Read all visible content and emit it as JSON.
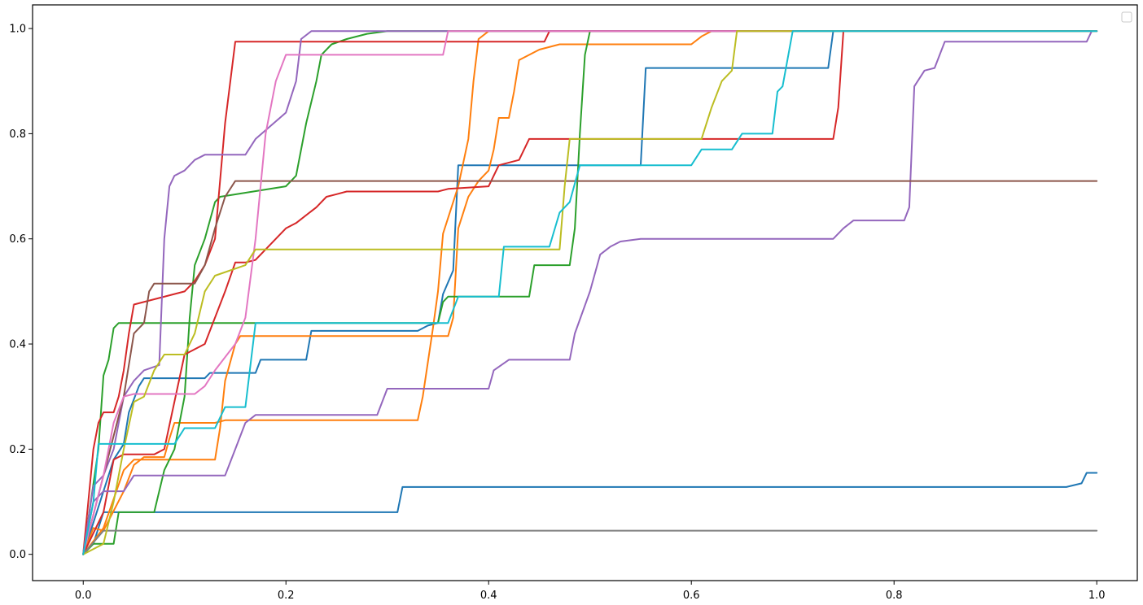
{
  "chart_data": {
    "type": "line",
    "title": "",
    "xlabel": "",
    "ylabel": "",
    "xlim": [
      -0.05,
      1.04
    ],
    "ylim": [
      -0.05,
      1.045
    ],
    "xticks": [
      0.0,
      0.2,
      0.4,
      0.6,
      0.8,
      1.0
    ],
    "xtick_labels": [
      "0.0",
      "0.2",
      "0.4",
      "0.6",
      "0.8",
      "1.0"
    ],
    "yticks": [
      0.0,
      0.2,
      0.4,
      0.6,
      0.8,
      1.0
    ],
    "ytick_labels": [
      "0.0",
      "0.2",
      "0.4",
      "0.6",
      "0.8",
      "1.0"
    ],
    "grid": false,
    "legend": {
      "placement": "top-right",
      "entries": []
    },
    "series": [
      {
        "color": "#1f77b4",
        "points": [
          [
            0,
            0
          ],
          [
            0.01,
            0.02
          ],
          [
            0.02,
            0.08
          ],
          [
            0.31,
            0.08
          ],
          [
            0.315,
            0.128
          ],
          [
            0.97,
            0.128
          ],
          [
            0.985,
            0.135
          ],
          [
            0.99,
            0.155
          ],
          [
            1.0,
            0.155
          ]
        ]
      },
      {
        "color": "#1f77b4",
        "points": [
          [
            0,
            0
          ],
          [
            0.02,
            0.12
          ],
          [
            0.03,
            0.18
          ],
          [
            0.04,
            0.21
          ],
          [
            0.045,
            0.27
          ],
          [
            0.055,
            0.32
          ],
          [
            0.06,
            0.335
          ],
          [
            0.12,
            0.335
          ],
          [
            0.125,
            0.345
          ],
          [
            0.17,
            0.345
          ],
          [
            0.175,
            0.37
          ],
          [
            0.22,
            0.37
          ],
          [
            0.225,
            0.425
          ],
          [
            0.33,
            0.425
          ],
          [
            0.34,
            0.435
          ],
          [
            0.35,
            0.44
          ],
          [
            0.355,
            0.495
          ],
          [
            0.365,
            0.54
          ],
          [
            0.37,
            0.74
          ],
          [
            0.55,
            0.74
          ],
          [
            0.555,
            0.925
          ],
          [
            0.735,
            0.925
          ],
          [
            0.74,
            0.995
          ],
          [
            1.0,
            0.995
          ]
        ]
      },
      {
        "color": "#ff7f0e",
        "points": [
          [
            0,
            0
          ],
          [
            0.01,
            0.05
          ],
          [
            0.02,
            0.045
          ],
          [
            0.04,
            0.12
          ],
          [
            0.05,
            0.17
          ],
          [
            0.06,
            0.185
          ],
          [
            0.08,
            0.185
          ],
          [
            0.085,
            0.22
          ],
          [
            0.09,
            0.25
          ],
          [
            0.13,
            0.25
          ],
          [
            0.14,
            0.255
          ],
          [
            0.33,
            0.255
          ],
          [
            0.335,
            0.3
          ],
          [
            0.345,
            0.43
          ],
          [
            0.35,
            0.5
          ],
          [
            0.355,
            0.61
          ],
          [
            0.37,
            0.7
          ],
          [
            0.38,
            0.79
          ],
          [
            0.385,
            0.9
          ],
          [
            0.39,
            0.98
          ],
          [
            0.4,
            0.995
          ],
          [
            1.0,
            0.995
          ]
        ]
      },
      {
        "color": "#ff7f0e",
        "points": [
          [
            0,
            0
          ],
          [
            0.02,
            0.05
          ],
          [
            0.04,
            0.16
          ],
          [
            0.05,
            0.18
          ],
          [
            0.13,
            0.18
          ],
          [
            0.135,
            0.24
          ],
          [
            0.14,
            0.33
          ],
          [
            0.15,
            0.4
          ],
          [
            0.155,
            0.415
          ],
          [
            0.36,
            0.415
          ],
          [
            0.365,
            0.45
          ],
          [
            0.37,
            0.62
          ],
          [
            0.38,
            0.68
          ],
          [
            0.39,
            0.71
          ],
          [
            0.4,
            0.73
          ],
          [
            0.405,
            0.77
          ],
          [
            0.41,
            0.83
          ],
          [
            0.42,
            0.83
          ],
          [
            0.425,
            0.88
          ],
          [
            0.43,
            0.94
          ],
          [
            0.45,
            0.96
          ],
          [
            0.47,
            0.97
          ],
          [
            0.6,
            0.97
          ],
          [
            0.61,
            0.985
          ],
          [
            0.62,
            0.995
          ],
          [
            1.0,
            0.995
          ]
        ]
      },
      {
        "color": "#2ca02c",
        "points": [
          [
            0,
            0
          ],
          [
            0.015,
            0.2
          ],
          [
            0.02,
            0.34
          ],
          [
            0.025,
            0.37
          ],
          [
            0.03,
            0.43
          ],
          [
            0.035,
            0.44
          ],
          [
            0.35,
            0.44
          ],
          [
            0.355,
            0.48
          ],
          [
            0.36,
            0.49
          ],
          [
            0.44,
            0.49
          ],
          [
            0.445,
            0.55
          ],
          [
            0.48,
            0.55
          ],
          [
            0.485,
            0.62
          ],
          [
            0.49,
            0.8
          ],
          [
            0.495,
            0.95
          ],
          [
            0.5,
            0.995
          ],
          [
            1.0,
            0.995
          ]
        ]
      },
      {
        "color": "#2ca02c",
        "points": [
          [
            0,
            0
          ],
          [
            0.01,
            0.02
          ],
          [
            0.03,
            0.02
          ],
          [
            0.035,
            0.08
          ],
          [
            0.07,
            0.08
          ],
          [
            0.08,
            0.16
          ],
          [
            0.09,
            0.2
          ],
          [
            0.1,
            0.3
          ],
          [
            0.105,
            0.45
          ],
          [
            0.11,
            0.55
          ],
          [
            0.12,
            0.6
          ],
          [
            0.13,
            0.67
          ],
          [
            0.135,
            0.68
          ],
          [
            0.2,
            0.7
          ],
          [
            0.21,
            0.72
          ],
          [
            0.22,
            0.82
          ],
          [
            0.23,
            0.9
          ],
          [
            0.235,
            0.95
          ],
          [
            0.245,
            0.97
          ],
          [
            0.26,
            0.98
          ],
          [
            0.28,
            0.99
          ],
          [
            0.3,
            0.995
          ],
          [
            1.0,
            0.995
          ]
        ]
      },
      {
        "color": "#d62728",
        "points": [
          [
            0,
            0
          ],
          [
            0.01,
            0.2
          ],
          [
            0.015,
            0.25
          ],
          [
            0.02,
            0.27
          ],
          [
            0.03,
            0.27
          ],
          [
            0.035,
            0.3
          ],
          [
            0.04,
            0.35
          ],
          [
            0.045,
            0.42
          ],
          [
            0.05,
            0.475
          ],
          [
            0.1,
            0.5
          ],
          [
            0.11,
            0.52
          ],
          [
            0.12,
            0.55
          ],
          [
            0.13,
            0.6
          ],
          [
            0.14,
            0.82
          ],
          [
            0.15,
            0.975
          ],
          [
            0.455,
            0.975
          ],
          [
            0.46,
            0.995
          ],
          [
            1.0,
            0.995
          ]
        ]
      },
      {
        "color": "#d62728",
        "points": [
          [
            0,
            0
          ],
          [
            0.02,
            0.08
          ],
          [
            0.03,
            0.18
          ],
          [
            0.04,
            0.19
          ],
          [
            0.07,
            0.19
          ],
          [
            0.08,
            0.2
          ],
          [
            0.1,
            0.38
          ],
          [
            0.12,
            0.4
          ],
          [
            0.14,
            0.5
          ],
          [
            0.15,
            0.555
          ],
          [
            0.16,
            0.555
          ],
          [
            0.17,
            0.56
          ],
          [
            0.19,
            0.6
          ],
          [
            0.2,
            0.62
          ],
          [
            0.21,
            0.63
          ],
          [
            0.23,
            0.66
          ],
          [
            0.24,
            0.68
          ],
          [
            0.25,
            0.685
          ],
          [
            0.26,
            0.69
          ],
          [
            0.35,
            0.69
          ],
          [
            0.36,
            0.695
          ],
          [
            0.4,
            0.7
          ],
          [
            0.41,
            0.74
          ],
          [
            0.43,
            0.75
          ],
          [
            0.44,
            0.79
          ],
          [
            0.74,
            0.79
          ],
          [
            0.745,
            0.85
          ],
          [
            0.75,
            0.995
          ],
          [
            1.0,
            0.995
          ]
        ]
      },
      {
        "color": "#9467bd",
        "points": [
          [
            0,
            0
          ],
          [
            0.01,
            0.13
          ],
          [
            0.02,
            0.15
          ],
          [
            0.03,
            0.2
          ],
          [
            0.04,
            0.3
          ],
          [
            0.05,
            0.33
          ],
          [
            0.06,
            0.35
          ],
          [
            0.075,
            0.36
          ],
          [
            0.08,
            0.6
          ],
          [
            0.085,
            0.7
          ],
          [
            0.09,
            0.72
          ],
          [
            0.1,
            0.73
          ],
          [
            0.11,
            0.75
          ],
          [
            0.12,
            0.76
          ],
          [
            0.16,
            0.76
          ],
          [
            0.17,
            0.79
          ],
          [
            0.2,
            0.84
          ],
          [
            0.21,
            0.9
          ],
          [
            0.215,
            0.98
          ],
          [
            0.225,
            0.995
          ],
          [
            1.0,
            0.995
          ]
        ]
      },
      {
        "color": "#9467bd",
        "points": [
          [
            0,
            0
          ],
          [
            0.01,
            0.1
          ],
          [
            0.02,
            0.12
          ],
          [
            0.04,
            0.12
          ],
          [
            0.05,
            0.15
          ],
          [
            0.14,
            0.15
          ],
          [
            0.15,
            0.2
          ],
          [
            0.16,
            0.25
          ],
          [
            0.17,
            0.265
          ],
          [
            0.29,
            0.265
          ],
          [
            0.3,
            0.315
          ],
          [
            0.4,
            0.315
          ],
          [
            0.405,
            0.35
          ],
          [
            0.42,
            0.37
          ],
          [
            0.48,
            0.37
          ],
          [
            0.485,
            0.42
          ],
          [
            0.5,
            0.5
          ],
          [
            0.51,
            0.57
          ],
          [
            0.52,
            0.585
          ],
          [
            0.53,
            0.595
          ],
          [
            0.55,
            0.6
          ],
          [
            0.74,
            0.6
          ],
          [
            0.75,
            0.62
          ],
          [
            0.76,
            0.635
          ],
          [
            0.81,
            0.635
          ],
          [
            0.815,
            0.66
          ],
          [
            0.82,
            0.89
          ],
          [
            0.83,
            0.92
          ],
          [
            0.84,
            0.925
          ],
          [
            0.85,
            0.975
          ],
          [
            0.99,
            0.975
          ],
          [
            0.995,
            0.995
          ],
          [
            1.0,
            0.995
          ]
        ]
      },
      {
        "color": "#8c564b",
        "points": [
          [
            0,
            0
          ],
          [
            0.02,
            0.15
          ],
          [
            0.04,
            0.3
          ],
          [
            0.05,
            0.42
          ],
          [
            0.06,
            0.44
          ],
          [
            0.065,
            0.5
          ],
          [
            0.07,
            0.515
          ],
          [
            0.11,
            0.515
          ],
          [
            0.12,
            0.55
          ],
          [
            0.13,
            0.62
          ],
          [
            0.14,
            0.68
          ],
          [
            0.15,
            0.71
          ],
          [
            1.0,
            0.71
          ]
        ]
      },
      {
        "color": "#e377c2",
        "points": [
          [
            0,
            0
          ],
          [
            0.02,
            0.15
          ],
          [
            0.03,
            0.25
          ],
          [
            0.04,
            0.3
          ],
          [
            0.05,
            0.305
          ],
          [
            0.11,
            0.305
          ],
          [
            0.12,
            0.32
          ],
          [
            0.13,
            0.35
          ],
          [
            0.15,
            0.4
          ],
          [
            0.16,
            0.45
          ],
          [
            0.17,
            0.6
          ],
          [
            0.18,
            0.8
          ],
          [
            0.19,
            0.9
          ],
          [
            0.2,
            0.95
          ],
          [
            0.355,
            0.95
          ],
          [
            0.36,
            0.995
          ],
          [
            1.0,
            0.995
          ]
        ]
      },
      {
        "color": "#7f7f7f",
        "points": [
          [
            0,
            0
          ],
          [
            0.02,
            0.045
          ],
          [
            1.0,
            0.045
          ]
        ]
      },
      {
        "color": "#bcbd22",
        "points": [
          [
            0,
            0
          ],
          [
            0.02,
            0.02
          ],
          [
            0.03,
            0.1
          ],
          [
            0.04,
            0.2
          ],
          [
            0.05,
            0.29
          ],
          [
            0.06,
            0.3
          ],
          [
            0.07,
            0.35
          ],
          [
            0.08,
            0.38
          ],
          [
            0.1,
            0.38
          ],
          [
            0.11,
            0.42
          ],
          [
            0.12,
            0.5
          ],
          [
            0.13,
            0.53
          ],
          [
            0.16,
            0.55
          ],
          [
            0.17,
            0.58
          ],
          [
            0.47,
            0.58
          ],
          [
            0.475,
            0.7
          ],
          [
            0.48,
            0.79
          ],
          [
            0.61,
            0.79
          ],
          [
            0.62,
            0.85
          ],
          [
            0.63,
            0.9
          ],
          [
            0.64,
            0.92
          ],
          [
            0.645,
            0.995
          ],
          [
            1.0,
            0.995
          ]
        ]
      },
      {
        "color": "#17becf",
        "points": [
          [
            0,
            0
          ],
          [
            0.01,
            0.1
          ],
          [
            0.015,
            0.21
          ],
          [
            0.09,
            0.21
          ],
          [
            0.1,
            0.24
          ],
          [
            0.13,
            0.24
          ],
          [
            0.14,
            0.28
          ],
          [
            0.16,
            0.28
          ],
          [
            0.17,
            0.44
          ],
          [
            0.36,
            0.44
          ],
          [
            0.37,
            0.49
          ],
          [
            0.41,
            0.49
          ],
          [
            0.415,
            0.585
          ],
          [
            0.46,
            0.585
          ],
          [
            0.47,
            0.65
          ],
          [
            0.48,
            0.67
          ],
          [
            0.49,
            0.74
          ],
          [
            0.6,
            0.74
          ],
          [
            0.61,
            0.77
          ],
          [
            0.64,
            0.77
          ],
          [
            0.65,
            0.8
          ],
          [
            0.68,
            0.8
          ],
          [
            0.685,
            0.88
          ],
          [
            0.69,
            0.89
          ],
          [
            0.7,
            0.995
          ],
          [
            1.0,
            0.995
          ]
        ]
      }
    ]
  }
}
